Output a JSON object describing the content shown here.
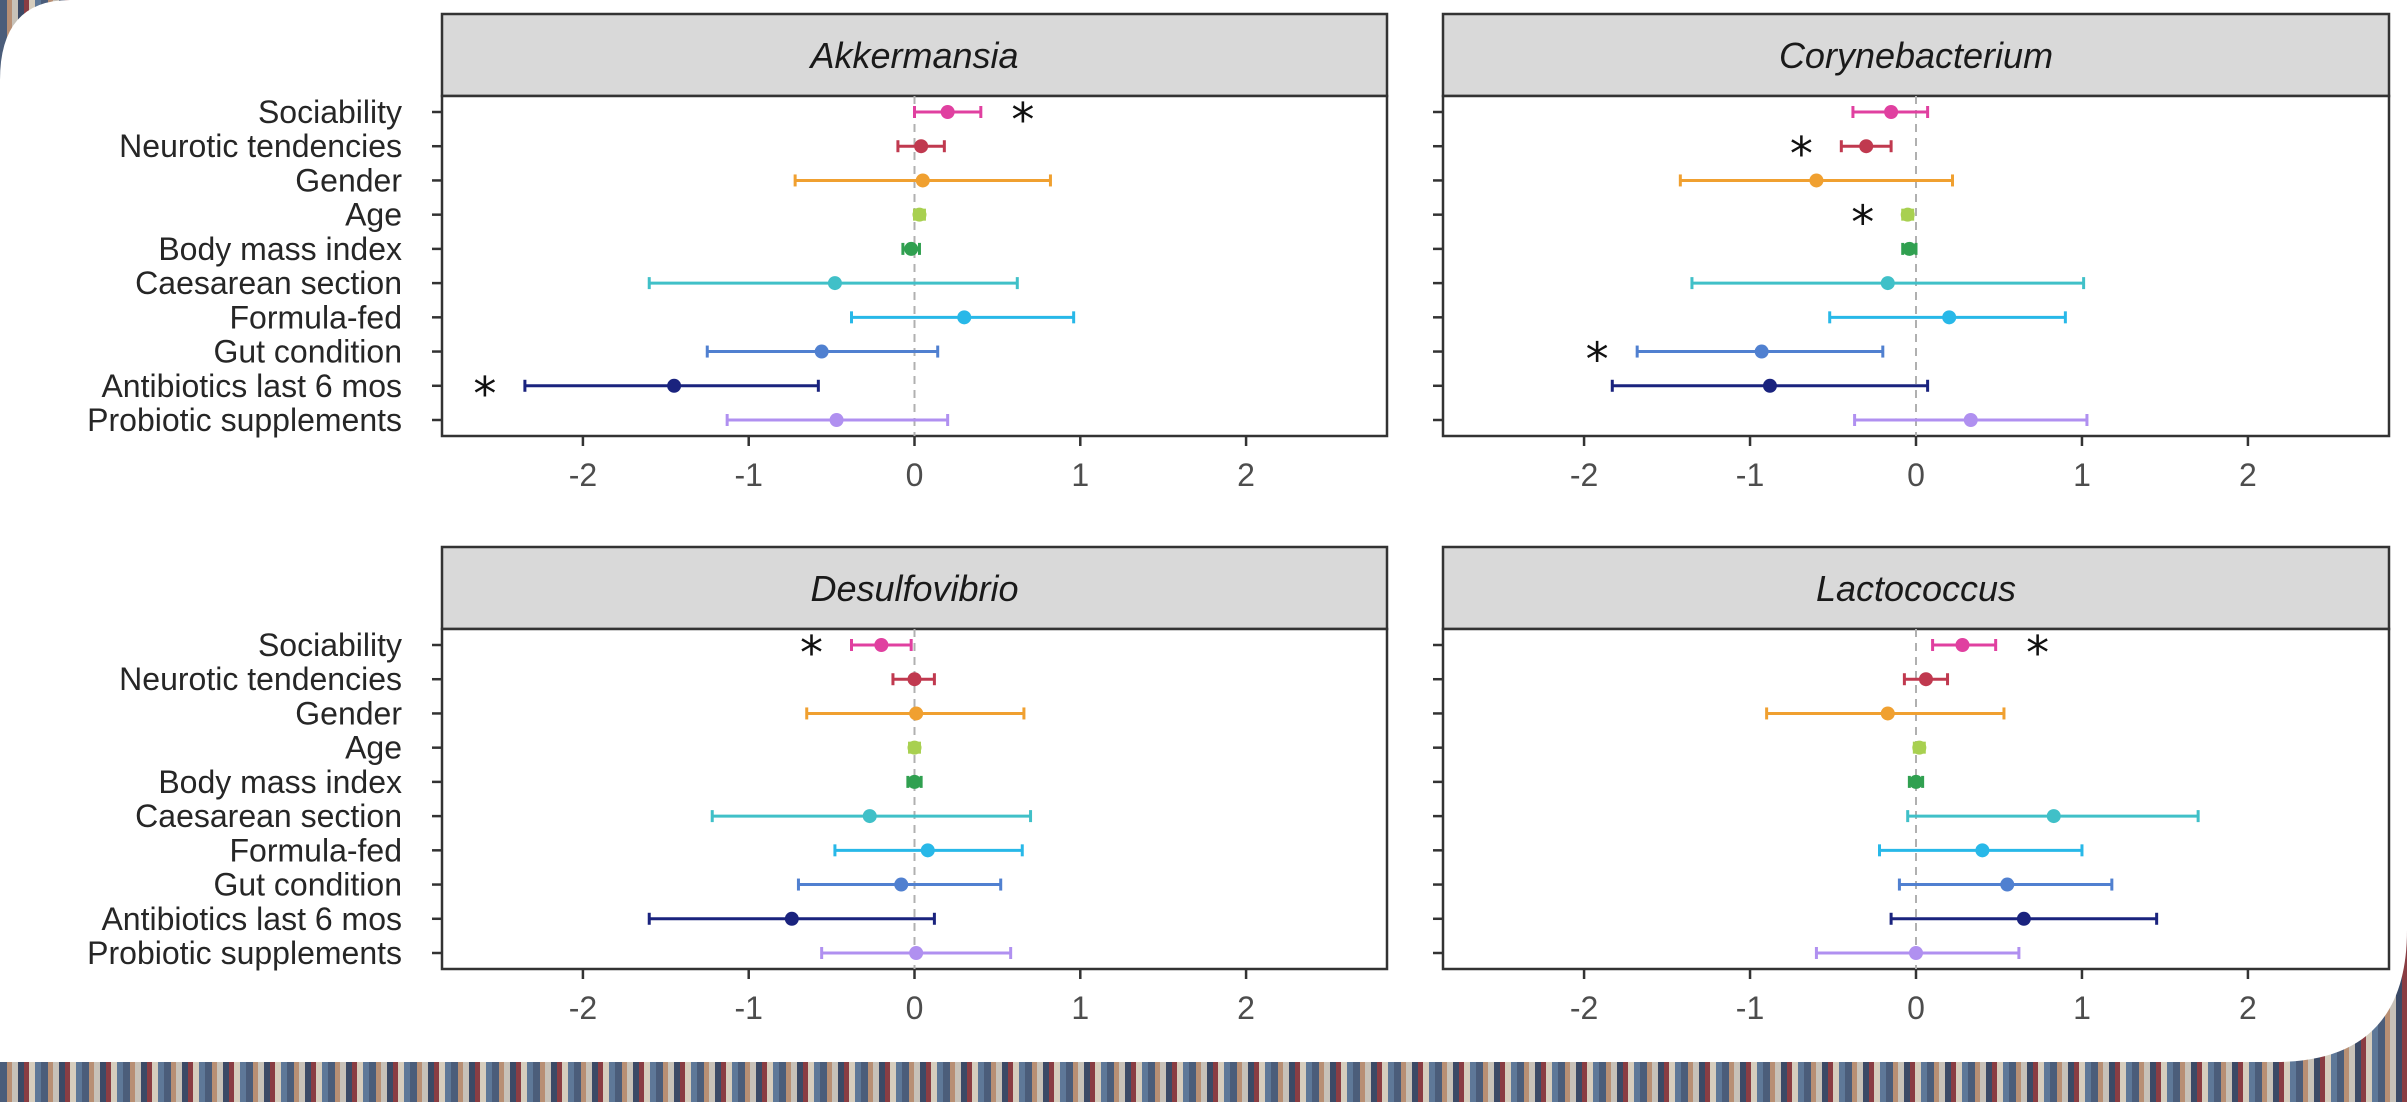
{
  "chart_data": [
    {
      "type": "forest",
      "title": "Akkermansia",
      "xlim": [
        -2.85,
        2.85
      ],
      "xticks": [
        "-2",
        "-1",
        "0",
        "1",
        "2"
      ],
      "variables": [
        {
          "label": "Sociability",
          "est": 0.2,
          "lo": 0.0,
          "hi": 0.4,
          "sig": true,
          "color": "#e040a0"
        },
        {
          "label": "Neurotic tendencies",
          "est": 0.04,
          "lo": -0.1,
          "hi": 0.18,
          "sig": false,
          "color": "#c0394f"
        },
        {
          "label": "Gender",
          "est": 0.05,
          "lo": -0.72,
          "hi": 0.82,
          "sig": false,
          "color": "#f0a030"
        },
        {
          "label": "Age",
          "est": 0.03,
          "lo": 0.0,
          "hi": 0.06,
          "sig": false,
          "color": "#a8d050"
        },
        {
          "label": "Body mass index",
          "est": -0.02,
          "lo": -0.07,
          "hi": 0.03,
          "sig": false,
          "color": "#30a050"
        },
        {
          "label": "Caesarean section",
          "est": -0.48,
          "lo": -1.6,
          "hi": 0.62,
          "sig": false,
          "color": "#40c0c8"
        },
        {
          "label": "Formula-fed",
          "est": 0.3,
          "lo": -0.38,
          "hi": 0.96,
          "sig": false,
          "color": "#28b8e8"
        },
        {
          "label": "Gut condition",
          "est": -0.56,
          "lo": -1.25,
          "hi": 0.14,
          "sig": false,
          "color": "#5080d0"
        },
        {
          "label": "Antibiotics last 6 mos",
          "est": -1.45,
          "lo": -2.35,
          "hi": -0.58,
          "sig": true,
          "color": "#1a237e"
        },
        {
          "label": "Probiotic supplements",
          "est": -0.47,
          "lo": -1.13,
          "hi": 0.2,
          "sig": false,
          "color": "#b090f0"
        }
      ]
    },
    {
      "type": "forest",
      "title": "Corynebacterium",
      "xlim": [
        -2.85,
        2.85
      ],
      "xticks": [
        "-2",
        "-1",
        "0",
        "1",
        "2"
      ],
      "variables": [
        {
          "label": "Sociability",
          "est": -0.15,
          "lo": -0.38,
          "hi": 0.07,
          "sig": false,
          "color": "#e040a0"
        },
        {
          "label": "Neurotic tendencies",
          "est": -0.3,
          "lo": -0.45,
          "hi": -0.15,
          "sig": true,
          "color": "#c0394f"
        },
        {
          "label": "Gender",
          "est": -0.6,
          "lo": -1.42,
          "hi": 0.22,
          "sig": false,
          "color": "#f0a030"
        },
        {
          "label": "Age",
          "est": -0.05,
          "lo": -0.08,
          "hi": -0.02,
          "sig": true,
          "color": "#a8d050"
        },
        {
          "label": "Body mass index",
          "est": -0.04,
          "lo": -0.08,
          "hi": 0.0,
          "sig": false,
          "color": "#30a050"
        },
        {
          "label": "Caesarean section",
          "est": -0.17,
          "lo": -1.35,
          "hi": 1.01,
          "sig": false,
          "color": "#40c0c8"
        },
        {
          "label": "Formula-fed",
          "est": 0.2,
          "lo": -0.52,
          "hi": 0.9,
          "sig": false,
          "color": "#28b8e8"
        },
        {
          "label": "Gut condition",
          "est": -0.93,
          "lo": -1.68,
          "hi": -0.2,
          "sig": true,
          "color": "#5080d0"
        },
        {
          "label": "Antibiotics last 6 mos",
          "est": -0.88,
          "lo": -1.83,
          "hi": 0.07,
          "sig": false,
          "color": "#1a237e"
        },
        {
          "label": "Probiotic supplements",
          "est": 0.33,
          "lo": -0.37,
          "hi": 1.03,
          "sig": false,
          "color": "#b090f0"
        }
      ]
    },
    {
      "type": "forest",
      "title": "Desulfovibrio",
      "xlim": [
        -2.85,
        2.85
      ],
      "xticks": [
        "-2",
        "-1",
        "0",
        "1",
        "2"
      ],
      "variables": [
        {
          "label": "Sociability",
          "est": -0.2,
          "lo": -0.38,
          "hi": -0.02,
          "sig": true,
          "color": "#e040a0"
        },
        {
          "label": "Neurotic tendencies",
          "est": 0.0,
          "lo": -0.13,
          "hi": 0.12,
          "sig": false,
          "color": "#c0394f"
        },
        {
          "label": "Gender",
          "est": 0.01,
          "lo": -0.65,
          "hi": 0.66,
          "sig": false,
          "color": "#f0a030"
        },
        {
          "label": "Age",
          "est": 0.0,
          "lo": -0.03,
          "hi": 0.03,
          "sig": false,
          "color": "#a8d050"
        },
        {
          "label": "Body mass index",
          "est": 0.0,
          "lo": -0.04,
          "hi": 0.04,
          "sig": false,
          "color": "#30a050"
        },
        {
          "label": "Caesarean section",
          "est": -0.27,
          "lo": -1.22,
          "hi": 0.7,
          "sig": false,
          "color": "#40c0c8"
        },
        {
          "label": "Formula-fed",
          "est": 0.08,
          "lo": -0.48,
          "hi": 0.65,
          "sig": false,
          "color": "#28b8e8"
        },
        {
          "label": "Gut condition",
          "est": -0.08,
          "lo": -0.7,
          "hi": 0.52,
          "sig": false,
          "color": "#5080d0"
        },
        {
          "label": "Antibiotics last 6 mos",
          "est": -0.74,
          "lo": -1.6,
          "hi": 0.12,
          "sig": false,
          "color": "#1a237e"
        },
        {
          "label": "Probiotic supplements",
          "est": 0.01,
          "lo": -0.56,
          "hi": 0.58,
          "sig": false,
          "color": "#b090f0"
        }
      ]
    },
    {
      "type": "forest",
      "title": "Lactococcus",
      "xlim": [
        -2.85,
        2.85
      ],
      "xticks": [
        "-2",
        "-1",
        "0",
        "1",
        "2"
      ],
      "variables": [
        {
          "label": "Sociability",
          "est": 0.28,
          "lo": 0.1,
          "hi": 0.48,
          "sig": true,
          "color": "#e040a0"
        },
        {
          "label": "Neurotic tendencies",
          "est": 0.06,
          "lo": -0.07,
          "hi": 0.19,
          "sig": false,
          "color": "#c0394f"
        },
        {
          "label": "Gender",
          "est": -0.17,
          "lo": -0.9,
          "hi": 0.53,
          "sig": false,
          "color": "#f0a030"
        },
        {
          "label": "Age",
          "est": 0.02,
          "lo": -0.01,
          "hi": 0.05,
          "sig": false,
          "color": "#a8d050"
        },
        {
          "label": "Body mass index",
          "est": 0.0,
          "lo": -0.04,
          "hi": 0.04,
          "sig": false,
          "color": "#30a050"
        },
        {
          "label": "Caesarean section",
          "est": 0.83,
          "lo": -0.05,
          "hi": 1.7,
          "sig": false,
          "color": "#40c0c8"
        },
        {
          "label": "Formula-fed",
          "est": 0.4,
          "lo": -0.22,
          "hi": 1.0,
          "sig": false,
          "color": "#28b8e8"
        },
        {
          "label": "Gut condition",
          "est": 0.55,
          "lo": -0.1,
          "hi": 1.18,
          "sig": false,
          "color": "#5080d0"
        },
        {
          "label": "Antibiotics last 6 mos",
          "est": 0.65,
          "lo": -0.15,
          "hi": 1.45,
          "sig": false,
          "color": "#1a237e"
        },
        {
          "label": "Probiotic supplements",
          "est": 0.0,
          "lo": -0.6,
          "hi": 0.62,
          "sig": false,
          "color": "#b090f0"
        }
      ]
    }
  ],
  "significance_marker": "*"
}
